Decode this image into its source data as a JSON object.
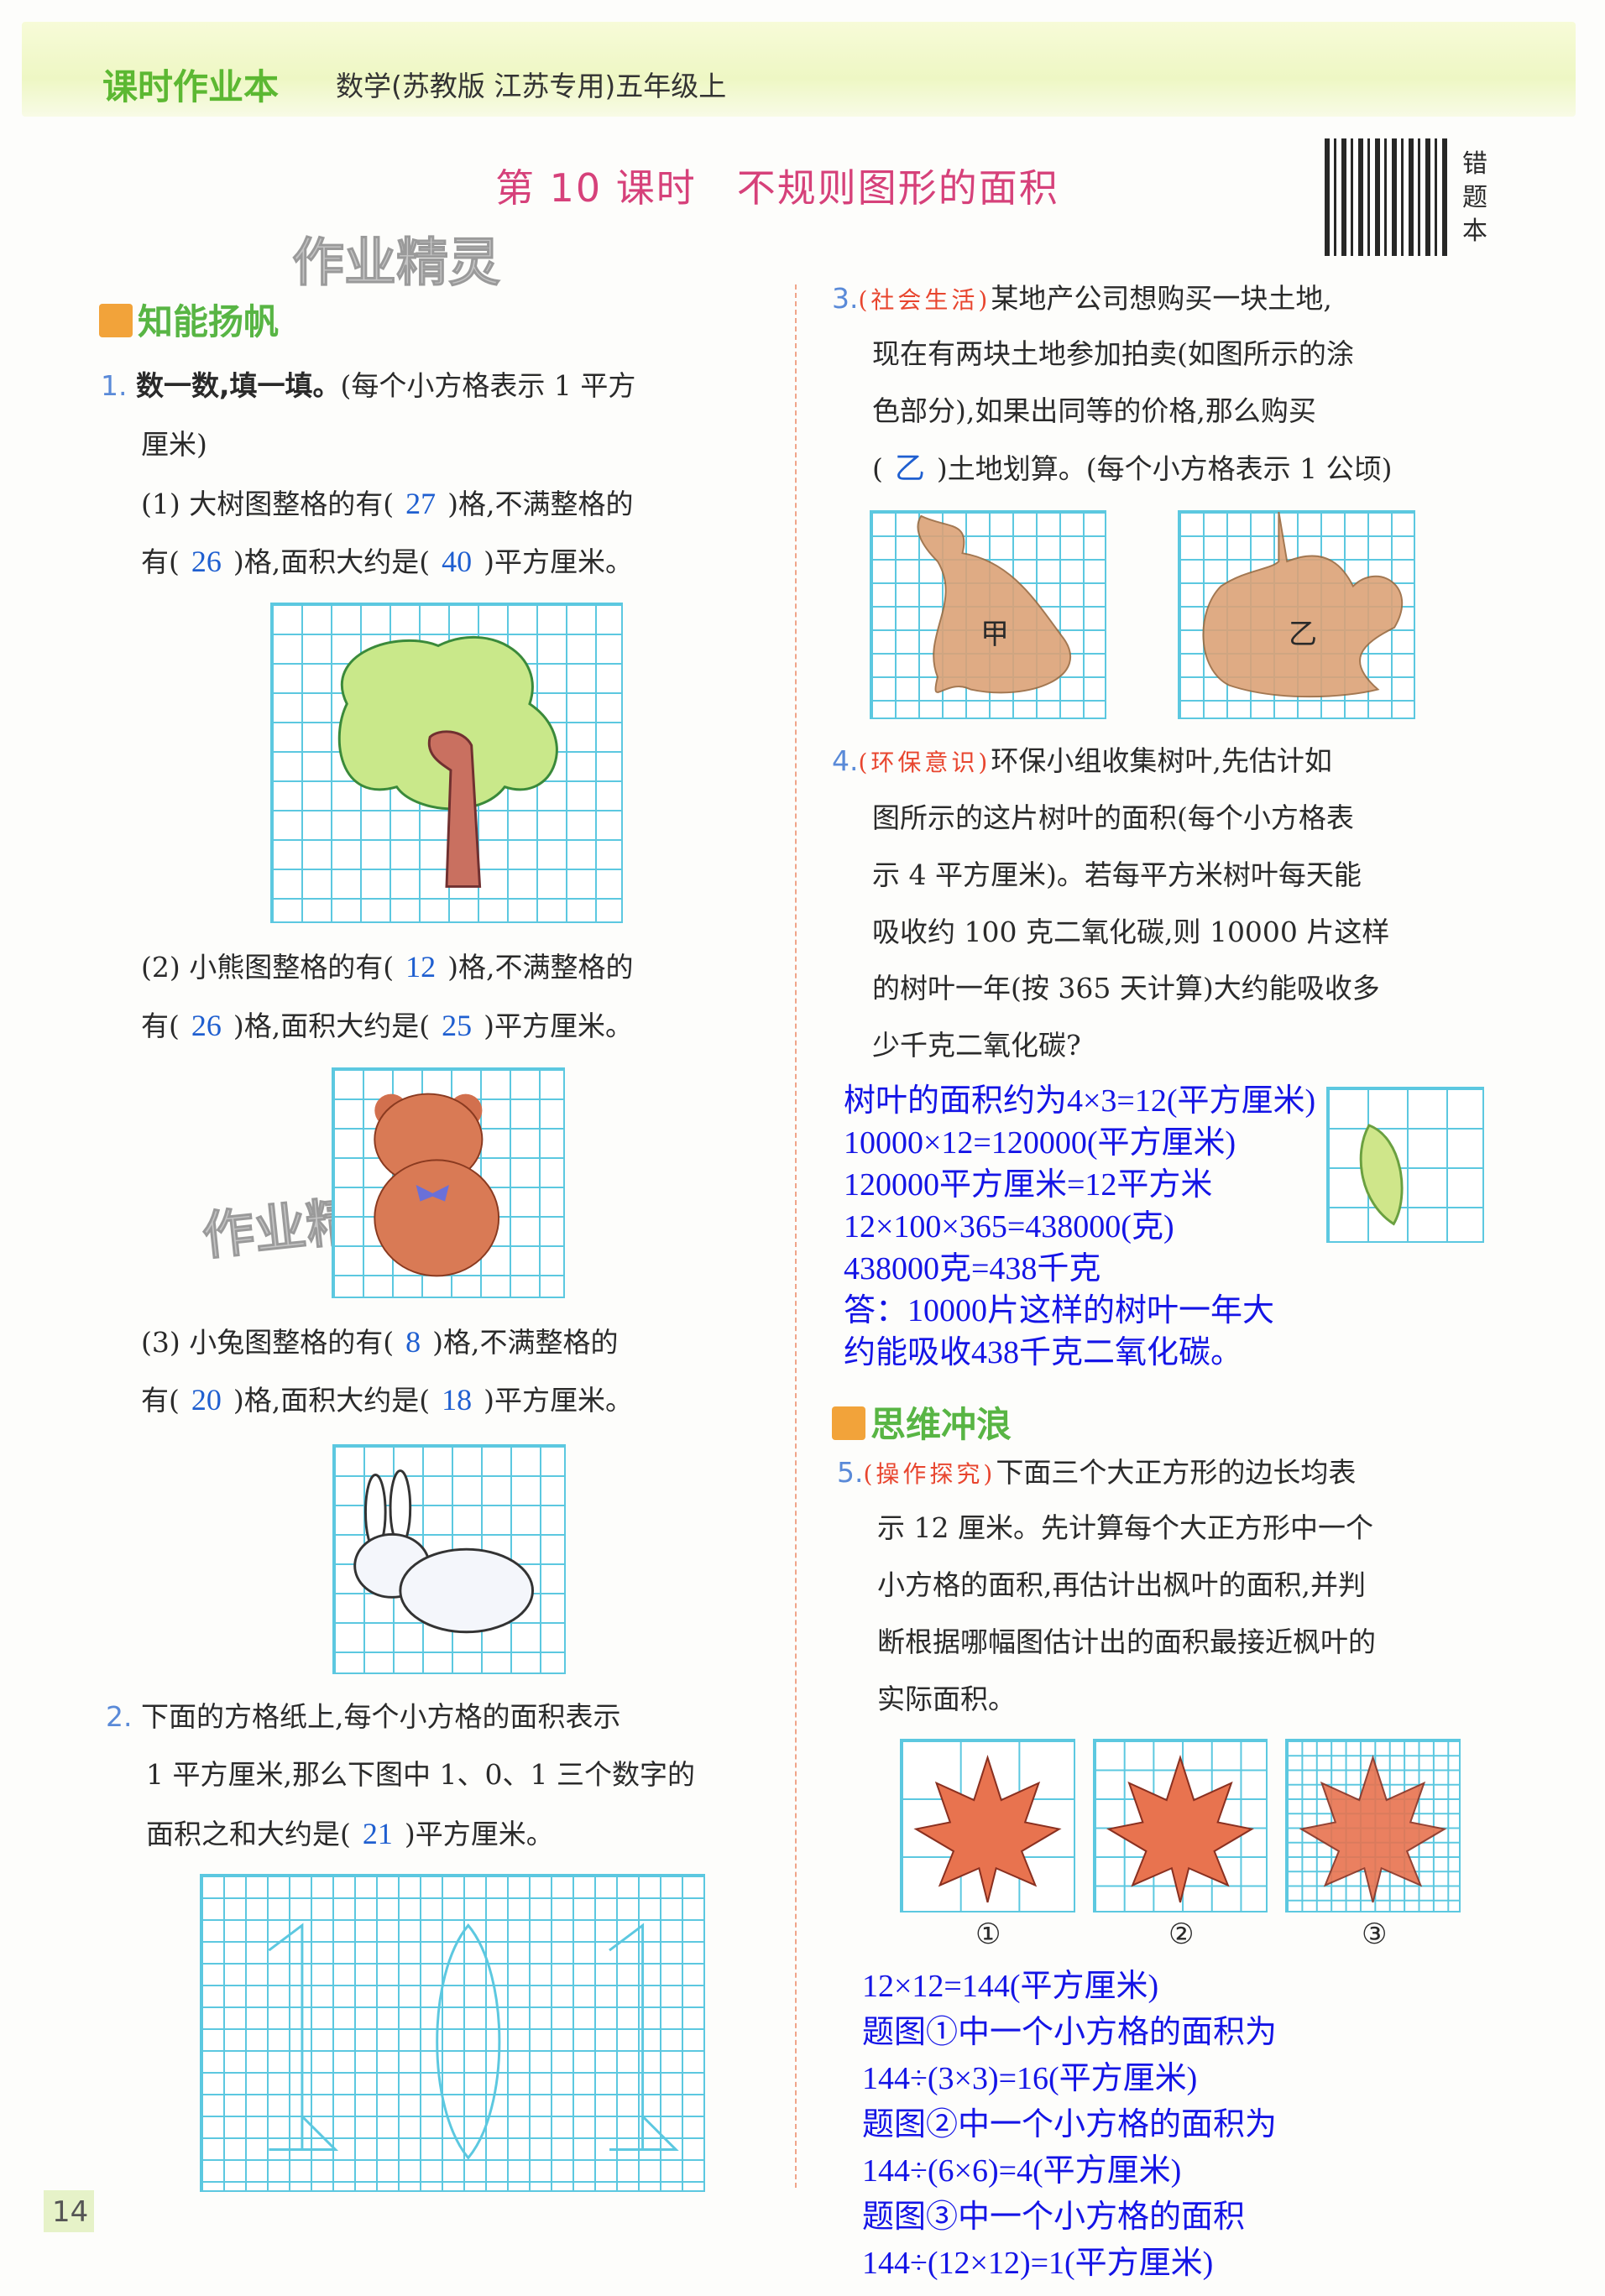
{
  "header": {
    "brand": "课时作业本",
    "subtitle": "数学(苏教版 江苏专用)五年级上",
    "lesson_title": "第 10 课时　不规则图形的面积",
    "qr_label": "错题本",
    "watermark": "作业精灵"
  },
  "sections": {
    "s1": "知能扬帆",
    "s2": "思维冲浪"
  },
  "q1": {
    "num": "1.",
    "title": "数一数,填一填。",
    "note": "(每个小方格表示 1 平方",
    "note2": "厘米)",
    "p1": {
      "a": "(1) 大树图整格的有(",
      "full": "27",
      "b": ")格,不满整格的",
      "c": "有(",
      "partial": "26",
      "d": ")格,面积大约是(",
      "area": "40",
      "e": ")平方厘米。"
    },
    "p2": {
      "a": "(2) 小熊图整格的有(",
      "full": "12",
      "b": ")格,不满整格的",
      "c": "有(",
      "partial": "26",
      "d": ")格,面积大约是(",
      "area": "25",
      "e": ")平方厘米。"
    },
    "p3": {
      "a": "(3) 小兔图整格的有(",
      "full": "8",
      "b": ")格,不满整格的",
      "c": "有(",
      "partial": "20",
      "d": ")格,面积大约是(",
      "area": "18",
      "e": ")平方厘米。"
    }
  },
  "q2": {
    "num": "2.",
    "l1": "下面的方格纸上,每个小方格的面积表示",
    "l2": "1 平方厘米,那么下图中 1、0、1 三个数字的",
    "l3a": "面积之和大约是(",
    "answer": "21",
    "l3b": ")平方厘米。"
  },
  "q3": {
    "num": "3.",
    "tag": "(社会生活)",
    "l1": "某地产公司想购买一块土地,",
    "l2": "现在有两块土地参加拍卖(如图所示的涂",
    "l3": "色部分),如果出同等的价格,那么购买",
    "l4a": "(",
    "answer": "乙",
    "l4b": ")土地划算。(每个小方格表示 1 公顷)",
    "land_a": "甲",
    "land_b": "乙"
  },
  "q4": {
    "num": "4.",
    "tag": "(环保意识)",
    "l1": "环保小组收集树叶,先估计如",
    "l2": "图所示的这片树叶的面积(每个小方格表",
    "l3": "示 4 平方厘米)。若每平方米树叶每天能",
    "l4": "吸收约 100 克二氧化碳,则 10000 片这样",
    "l5": "的树叶一年(按 365 天计算)大约能吸收多",
    "l6": "少千克二氧化碳?",
    "answer": [
      "树叶的面积约为4×3=12(平方厘米)",
      "10000×12=120000(平方厘米)",
      "120000平方厘米=12平方米",
      "12×100×365=438000(克)",
      "438000克=438千克",
      "答：10000片这样的树叶一年大",
      "约能吸收438千克二氧化碳。"
    ]
  },
  "q5": {
    "num": "5.",
    "tag": "(操作探究)",
    "l1": "下面三个大正方形的边长均表",
    "l2": "示 12 厘米。先计算每个大正方形中一个",
    "l3": "小方格的面积,再估计出枫叶的面积,并判",
    "l4": "断根据哪幅图估计出的面积最接近枫叶的",
    "l5": "实际面积。",
    "labels": [
      "①",
      "②",
      "③"
    ],
    "answer": [
      "12×12=144(平方厘米)",
      "题图①中一个小方格的面积为",
      "144÷(3×3)=16(平方厘米)",
      "题图②中一个小方格的面积为",
      "144÷(6×6)=4(平方厘米)",
      "题图③中一个小方格的面积",
      "144÷(12×12)=1(平方厘米)"
    ]
  },
  "page_number": "14",
  "colors": {
    "brand": "#5cb832",
    "lesson": "#d6417a",
    "answer": "#1414e6",
    "grid": "#5cc8e0",
    "shape_fill": "#dca277",
    "maple": "#e8734f"
  }
}
